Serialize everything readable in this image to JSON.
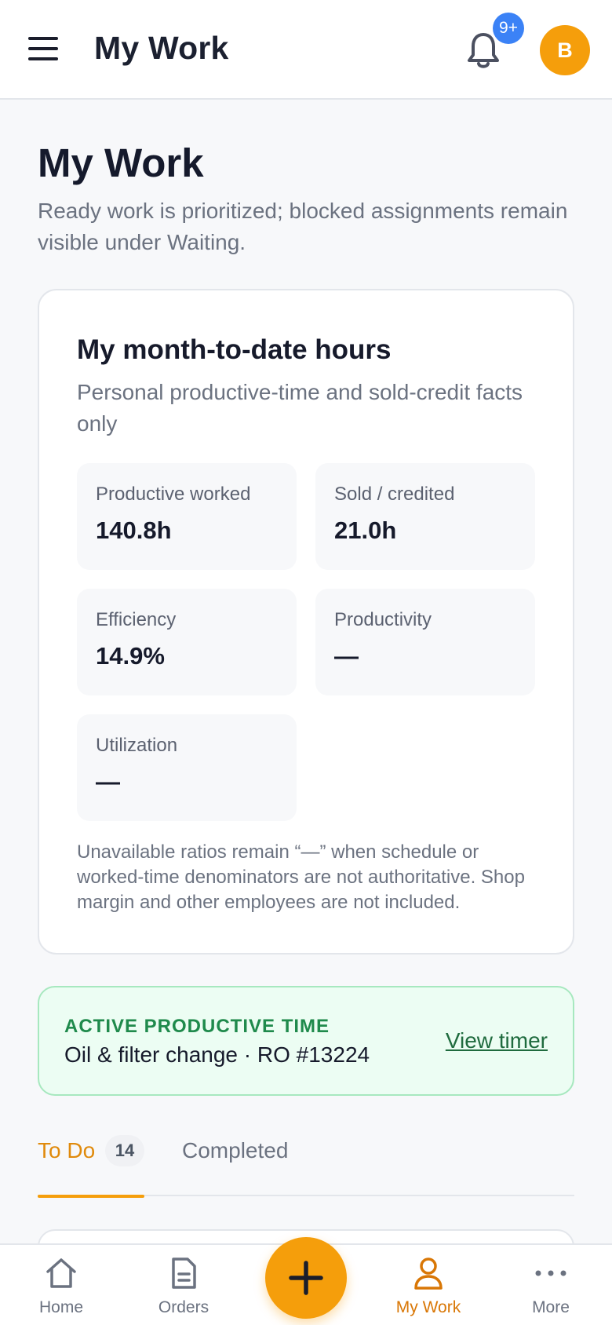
{
  "header": {
    "title": "My Work",
    "notification_count": "9+",
    "avatar_initial": "B"
  },
  "page": {
    "title": "My Work",
    "subtitle": "Ready work is prioritized; blocked assignments remain visible under Waiting."
  },
  "hours_card": {
    "title": "My month-to-date hours",
    "subtitle": "Personal productive-time and sold-credit facts only",
    "stats": [
      {
        "label": "Productive worked",
        "value": "140.8h"
      },
      {
        "label": "Sold / credited",
        "value": "21.0h"
      },
      {
        "label": "Efficiency",
        "value": "14.9%"
      },
      {
        "label": "Productivity",
        "value": "—"
      },
      {
        "label": "Utilization",
        "value": "—"
      }
    ],
    "note": "Unavailable ratios remain “—” when schedule or worked-time denominators are not authoritative. Shop margin and other employees are not included."
  },
  "active_time": {
    "label": "ACTIVE PRODUCTIVE TIME",
    "detail": "Oil & filter change · RO #13224",
    "action": "View timer"
  },
  "tabs": {
    "todo_label": "To Do",
    "todo_count": "14",
    "completed_label": "Completed"
  },
  "bottom_nav": {
    "home": "Home",
    "orders": "Orders",
    "my_work": "My Work",
    "more": "More",
    "active": "My Work"
  },
  "colors": {
    "accent": "#f59e0b",
    "notification": "#3b82f6",
    "active_green": "#1f8a4c"
  }
}
